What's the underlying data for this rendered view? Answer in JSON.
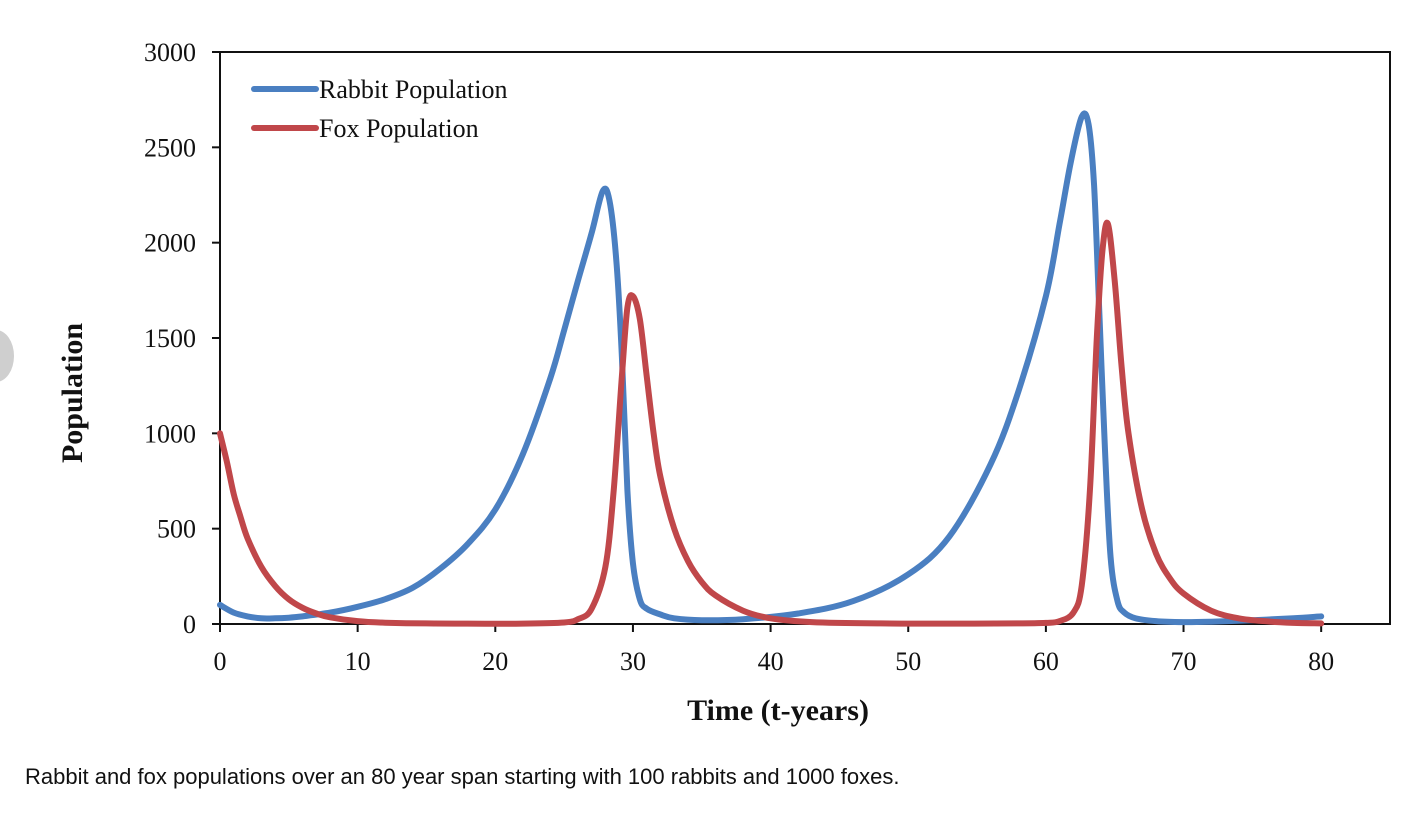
{
  "caption": "Rabbit and fox populations over an 80 year span starting with 100 rabbits and 1000 foxes.",
  "chart_data": {
    "type": "line",
    "title": "",
    "xlabel": "Time (t-years)",
    "ylabel": "Population",
    "xlim": [
      0,
      85
    ],
    "ylim": [
      0,
      3000
    ],
    "xticks": [
      0,
      10,
      20,
      30,
      40,
      50,
      60,
      70,
      80
    ],
    "yticks": [
      0,
      500,
      1000,
      1500,
      2000,
      2500,
      3000
    ],
    "grid": false,
    "legend_position": "top-left",
    "series": [
      {
        "name": "Rabbit Population",
        "color": "#4a7fc1",
        "x": [
          0,
          1,
          2,
          3,
          4,
          5,
          6,
          8,
          10,
          12,
          14,
          16,
          18,
          20,
          22,
          24,
          25,
          26,
          27,
          27.8,
          28.3,
          28.8,
          29.2,
          29.6,
          30,
          30.5,
          31,
          32,
          33,
          35,
          38,
          42,
          46,
          50,
          53,
          56,
          58,
          60,
          61,
          61.8,
          62.6,
          63.1,
          63.5,
          63.9,
          64.3,
          64.7,
          65.2,
          65.7,
          66.5,
          68,
          70,
          72,
          75,
          78,
          80
        ],
        "y": [
          100,
          60,
          40,
          30,
          30,
          33,
          40,
          60,
          90,
          130,
          190,
          290,
          420,
          600,
          890,
          1290,
          1540,
          1800,
          2050,
          2270,
          2220,
          1900,
          1400,
          700,
          320,
          130,
          80,
          50,
          30,
          20,
          25,
          55,
          120,
          260,
          460,
          840,
          1220,
          1720,
          2100,
          2420,
          2660,
          2620,
          2300,
          1600,
          900,
          350,
          120,
          60,
          30,
          15,
          10,
          12,
          20,
          30,
          40
        ]
      },
      {
        "name": "Fox Population",
        "color": "#c0474a",
        "x": [
          0,
          0.5,
          1,
          1.5,
          2,
          3,
          4,
          5,
          6,
          7,
          8,
          10,
          12,
          15,
          18,
          22,
          25,
          26,
          27,
          28,
          28.6,
          29.2,
          29.6,
          30,
          30.5,
          31,
          31.5,
          32,
          33,
          34,
          35,
          36,
          38,
          40,
          43,
          48,
          53,
          58,
          60,
          61,
          62,
          62.6,
          63.2,
          63.7,
          64.1,
          64.5,
          65,
          65.5,
          66,
          67,
          68,
          69,
          70,
          72,
          74,
          76,
          78,
          80
        ],
        "y": [
          1000,
          850,
          680,
          560,
          450,
          300,
          200,
          130,
          85,
          55,
          35,
          15,
          7,
          3,
          2,
          2,
          8,
          25,
          80,
          300,
          700,
          1300,
          1660,
          1720,
          1600,
          1300,
          1000,
          770,
          500,
          330,
          220,
          150,
          70,
          30,
          10,
          3,
          2,
          3,
          6,
          15,
          60,
          200,
          700,
          1500,
          1950,
          2100,
          1800,
          1350,
          1000,
          600,
          370,
          240,
          160,
          70,
          30,
          14,
          6,
          3
        ]
      }
    ]
  }
}
